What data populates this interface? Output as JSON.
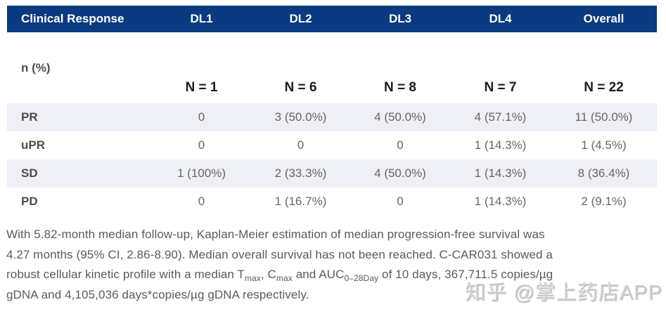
{
  "table": {
    "header": [
      "Clinical Response",
      "DL1",
      "DL2",
      "DL3",
      "DL4",
      "Overall"
    ],
    "subheader": {
      "label": "n (%)",
      "counts": [
        "N = 1",
        "N = 6",
        "N = 8",
        "N = 7",
        "N = 22"
      ]
    },
    "rows": [
      {
        "label": "PR",
        "values": [
          "0",
          "3 (50.0%)",
          "4 (50.0%)",
          "4 (57.1%)",
          "11 (50.0%)"
        ]
      },
      {
        "label": "uPR",
        "values": [
          "0",
          "0",
          "0",
          "1 (14.3%)",
          "1 (4.5%)"
        ]
      },
      {
        "label": "SD",
        "values": [
          "1 (100%)",
          "2 (33.3%)",
          "4 (50.0%)",
          "1 (14.3%)",
          "8 (36.4%)"
        ]
      },
      {
        "label": "PD",
        "values": [
          "0",
          "1 (16.7%)",
          "0",
          "1 (14.3%)",
          "2 (9.1%)"
        ]
      }
    ]
  },
  "paragraph": {
    "lines": [
      [
        {
          "text": "With 5.82-month median follow-up, Kaplan-Meier estimation of median progression-free survival was"
        }
      ],
      [
        {
          "text": "4.27 months (95% CI, 2.86-8.90). Median overall survival has not been reached. C-CAR031 showed a"
        }
      ],
      [
        {
          "text": "robust cellular kinetic profile with a median T"
        },
        {
          "sub": "max"
        },
        {
          "text": ", C"
        },
        {
          "sub": "max"
        },
        {
          "text": " and AUC"
        },
        {
          "sub": "0–28Day"
        },
        {
          "text": " of 10 days, 367,711.5 copies/µg"
        }
      ],
      [
        {
          "text": "gDNA and 4,105,036 days*copies/µg gDNA respectively."
        }
      ]
    ]
  },
  "watermark": {
    "text": "知乎 @掌上药店APP"
  },
  "colors": {
    "header_bg": "#0a3a80",
    "header_text": "#ffffff",
    "row_alt_bg": "#eef0f5",
    "label_text": "#4d4d4d",
    "value_text": "#666666",
    "body_text": "#5b5b5b"
  }
}
